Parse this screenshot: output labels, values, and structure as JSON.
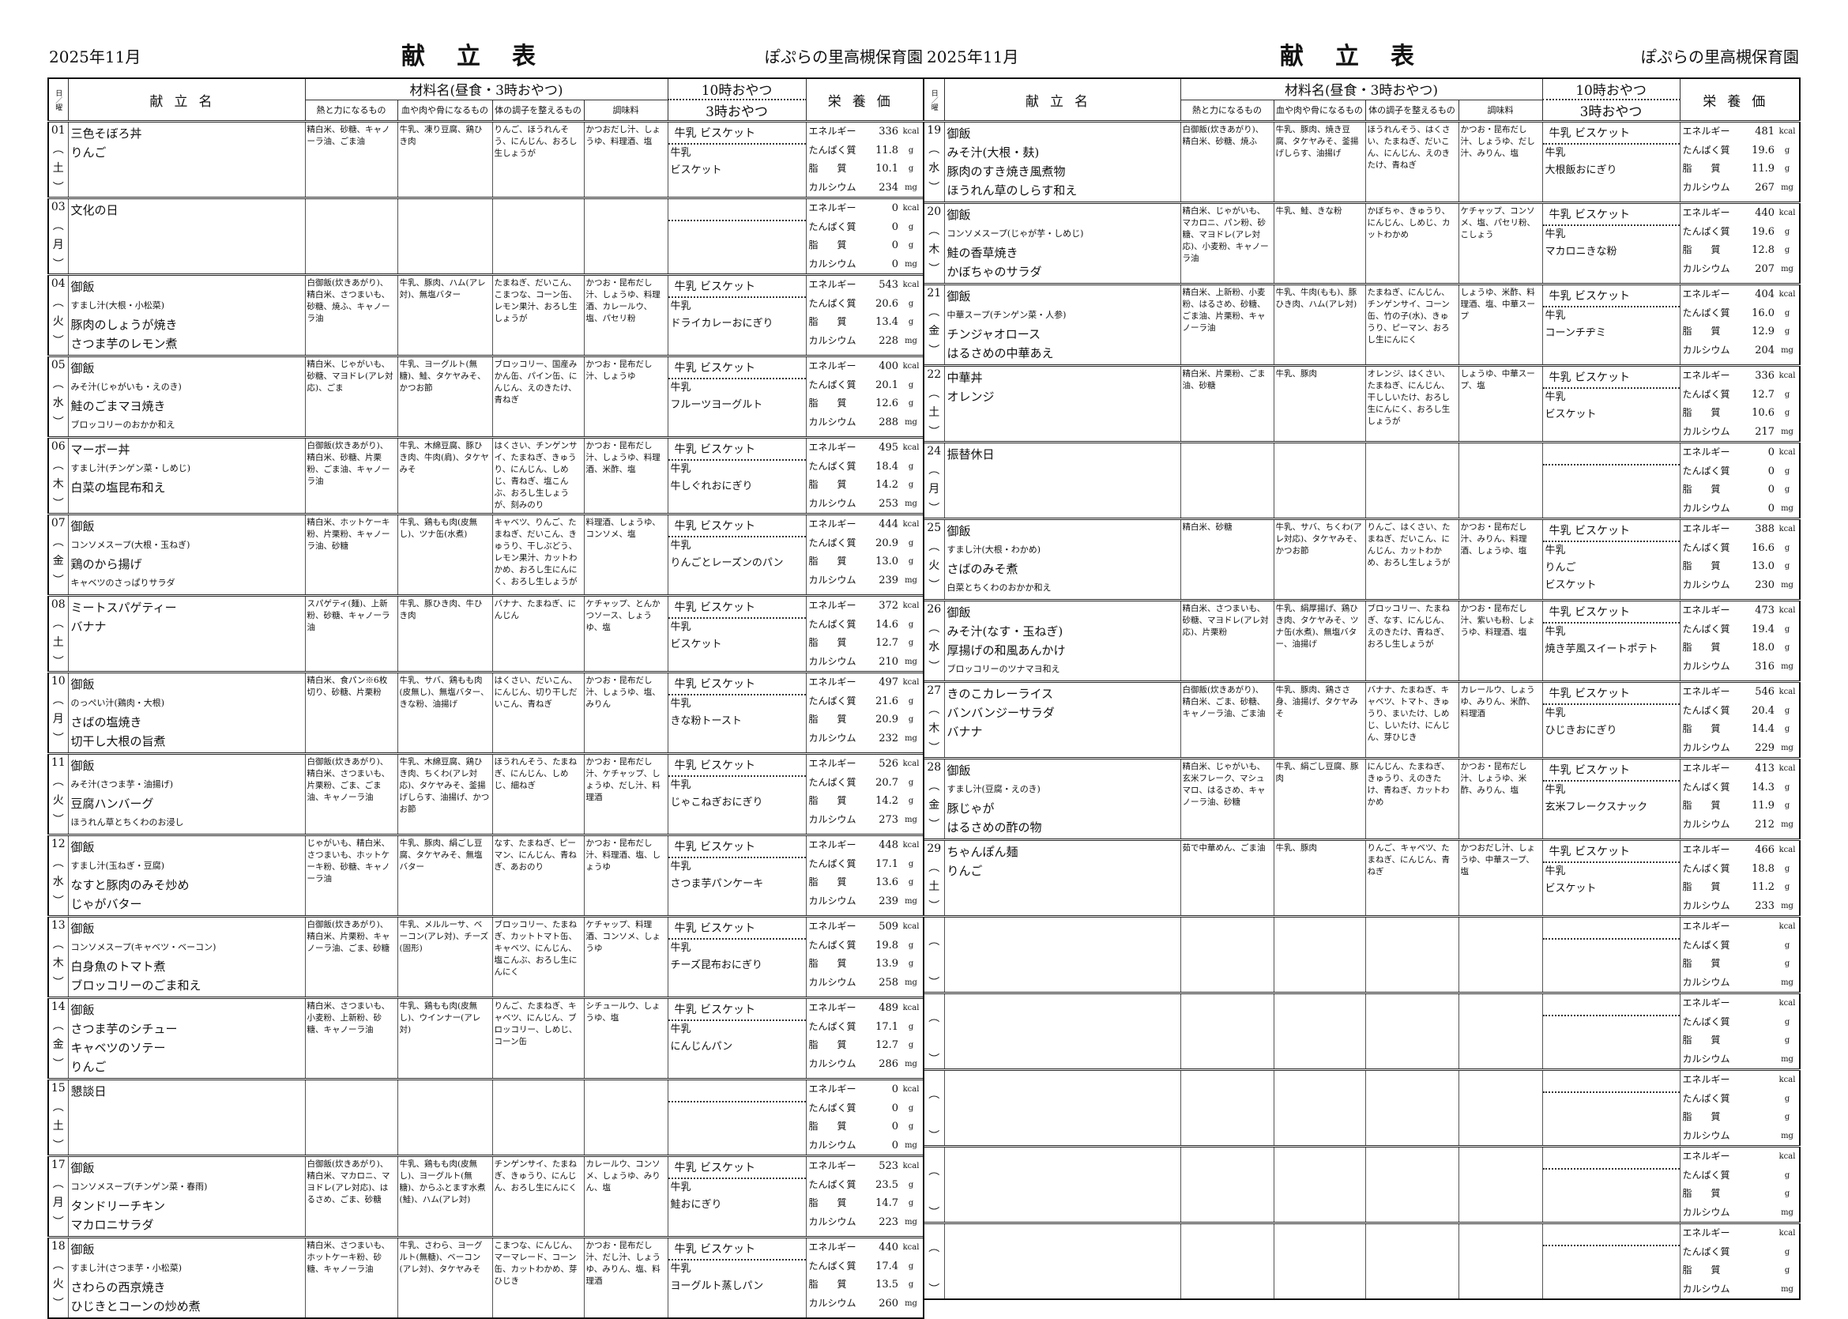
{
  "page": {
    "date": "2025年11月",
    "title": "献立表",
    "org": "ぽぷらの里高槻保育園"
  },
  "header": {
    "day": "日／曜",
    "menu": "献立名",
    "ingredients": "材料名(昼食・3時おやつ)",
    "energy_food": "熱と力になるもの",
    "body_food": "血や肉や骨になるもの",
    "condition_food": "体の調子を整えるもの",
    "seasoning": "調味料",
    "snack_am": "10時おやつ",
    "snack_pm": "3時おやつ",
    "nutrition": "栄養価"
  },
  "paren_open": "︵",
  "paren_close": "︶",
  "nutrition_labels": [
    "エネルギー",
    "たんぱく質",
    "脂　　質",
    "カルシウム"
  ],
  "nutrition_units": [
    "kcal",
    "g",
    "g",
    "mg"
  ],
  "left_rows": [
    {
      "day": "01",
      "wd": "土",
      "menu": [
        "三色そぼろ丼",
        "りんご"
      ],
      "heat": "精白米、砂糖、キャノーラ油、ごま油",
      "blood": "牛乳、凍り豆腐、鶏ひき肉",
      "body": "りんご、ほうれんそう、にんじん、おろし生しょうが",
      "season": "かつおだし汁、しょうゆ、料理酒、塩",
      "am": "牛乳 ビスケット",
      "pm": [
        "牛乳",
        "ビスケット"
      ],
      "nut": [
        "336",
        "11.8",
        "10.1",
        "234"
      ]
    },
    {
      "day": "03",
      "wd": "月",
      "menu": [
        "文化の日"
      ],
      "heat": "",
      "blood": "",
      "body": "",
      "season": "",
      "am": "",
      "pm": [],
      "nut": [
        "0",
        "0",
        "0",
        "0"
      ]
    },
    {
      "day": "04",
      "wd": "火",
      "menu": [
        "御飯",
        "すまし汁(大根・小松菜)",
        "豚肉のしょうが焼き",
        "さつま芋のレモン煮"
      ],
      "heat": "白御飯(炊きあがり)、精白米、さつまいも、砂糖、焼ふ、キャノーラ油",
      "blood": "牛乳、豚肉、ハム(アレ対)、無塩バター",
      "body": "たまねぎ、だいこん、こまつな、コーン缶、レモン果汁、おろし生しょうが",
      "season": "かつお・昆布だし汁、しょうゆ、料理酒、カレールウ、塩、パセリ粉",
      "am": "牛乳 ビスケット",
      "pm": [
        "牛乳",
        "ドライカレーおにぎり"
      ],
      "nut": [
        "543",
        "20.6",
        "13.4",
        "228"
      ]
    },
    {
      "day": "05",
      "wd": "水",
      "menu": [
        "御飯",
        "みそ汁(じゃがいも・えのき)",
        "鮭のごまマヨ焼き",
        "ブロッコリーのおかか和え"
      ],
      "heat": "精白米、じゃがいも、砂糖、マヨドレ(アレ対応)、ごま",
      "blood": "牛乳、ヨーグルト(無糖)、鮭、タケヤみそ、かつお節",
      "body": "ブロッコリー、国産みかん缶、パイン缶、にんじん、えのきたけ、青ねぎ",
      "season": "かつお・昆布だし汁、しょうゆ",
      "am": "牛乳 ビスケット",
      "pm": [
        "牛乳",
        "フルーツヨーグルト"
      ],
      "nut": [
        "400",
        "20.1",
        "12.6",
        "288"
      ]
    },
    {
      "day": "06",
      "wd": "木",
      "menu": [
        "マーボー丼",
        "すまし汁(チンゲン菜・しめじ)",
        "白菜の塩昆布和え"
      ],
      "heat": "白御飯(炊きあがり)、精白米、砂糖、片栗粉、ごま油、キャノーラ油",
      "blood": "牛乳、木綿豆腐、豚ひき肉、牛肉(肩)、タケヤみそ",
      "body": "はくさい、チンゲンサイ、たまねぎ、きゅうり、にんじん、しめじ、青ねぎ、塩こんぶ、おろし生しょうが、刻みのり",
      "season": "かつお・昆布だし汁、しょうゆ、料理酒、米酢、塩",
      "am": "牛乳 ビスケット",
      "pm": [
        "牛乳",
        "牛しぐれおにぎり"
      ],
      "nut": [
        "495",
        "18.4",
        "14.2",
        "253"
      ]
    },
    {
      "day": "07",
      "wd": "金",
      "menu": [
        "御飯",
        "コンソメスープ(大根・玉ねぎ)",
        "鶏のから揚げ",
        "キャベツのさっぱりサラダ"
      ],
      "heat": "精白米、ホットケーキ粉、片栗粉、キャノーラ油、砂糖",
      "blood": "牛乳、鶏もも肉(皮無し)、ツナ缶(水煮)",
      "body": "キャベツ、りんご、たまねぎ、だいこん、きゅうり、干しぶどう、レモン果汁、カットわかめ、おろし生にんにく、おろし生しょうが",
      "season": "料理酒、しょうゆ、コンソメ、塩",
      "am": "牛乳 ビスケット",
      "pm": [
        "牛乳",
        "りんごとレーズンのパン"
      ],
      "nut": [
        "444",
        "20.9",
        "13.0",
        "239"
      ]
    },
    {
      "day": "08",
      "wd": "土",
      "menu": [
        "ミートスパゲティー",
        "バナナ"
      ],
      "heat": "スパゲティ(麺)、上新粉、砂糖、キャノーラ油",
      "blood": "牛乳、豚ひき肉、牛ひき肉",
      "body": "バナナ、たまねぎ、にんじん",
      "season": "ケチャップ、とんかつソース、しょうゆ、塩",
      "am": "牛乳 ビスケット",
      "pm": [
        "牛乳",
        "ビスケット"
      ],
      "nut": [
        "372",
        "14.6",
        "12.7",
        "210"
      ]
    },
    {
      "day": "10",
      "wd": "月",
      "menu": [
        "御飯",
        "のっぺい汁(鶏肉・大根)",
        "さばの塩焼き",
        "切干し大根の旨煮"
      ],
      "heat": "精白米、食パン※6枚切り、砂糖、片栗粉",
      "blood": "牛乳、サバ、鶏もも肉(皮無し)、無塩バター、きな粉、油揚げ",
      "body": "はくさい、だいこん、にんじん、切り干しだいこん、青ねぎ",
      "season": "かつお・昆布だし汁、しょうゆ、塩、みりん",
      "am": "牛乳 ビスケット",
      "pm": [
        "牛乳",
        "きな粉トースト"
      ],
      "nut": [
        "497",
        "21.6",
        "20.9",
        "232"
      ]
    },
    {
      "day": "11",
      "wd": "火",
      "menu": [
        "御飯",
        "みそ汁(さつま芋・油揚げ)",
        "豆腐ハンバーグ",
        "ほうれん草とちくわのお浸し"
      ],
      "heat": "白御飯(炊きあがり)、精白米、さつまいも、片栗粉、ごま、ごま油、キャノーラ油",
      "blood": "牛乳、木綿豆腐、鶏ひき肉、ちくわ(アレ対応)、タケヤみそ、釜揚げしらす、油揚げ、かつお節",
      "body": "ほうれんそう、たまねぎ、にんじん、しめじ、細ねぎ",
      "season": "かつお・昆布だし汁、ケチャップ、しょうゆ、だし汁、料理酒",
      "am": "牛乳 ビスケット",
      "pm": [
        "牛乳",
        "じゃこねぎおにぎり"
      ],
      "nut": [
        "526",
        "20.7",
        "14.2",
        "273"
      ]
    },
    {
      "day": "12",
      "wd": "水",
      "menu": [
        "御飯",
        "すまし汁(玉ねぎ・豆腐)",
        "なすと豚肉のみそ炒め",
        "じゃがバター"
      ],
      "heat": "じゃがいも、精白米、さつまいも、ホットケーキ粉、砂糖、キャノーラ油",
      "blood": "牛乳、豚肉、絹ごし豆腐、タケヤみそ、無塩バター",
      "body": "なす、たまねぎ、ピーマン、にんじん、青ねぎ、あおのり",
      "season": "かつお・昆布だし汁、料理酒、塩、しょうゆ",
      "am": "牛乳 ビスケット",
      "pm": [
        "牛乳",
        "さつま芋パンケーキ"
      ],
      "nut": [
        "448",
        "17.1",
        "13.6",
        "239"
      ]
    },
    {
      "day": "13",
      "wd": "木",
      "menu": [
        "御飯",
        "コンソメスープ(キャベツ・ベーコン)",
        "白身魚のトマト煮",
        "ブロッコリーのごま和え"
      ],
      "heat": "白御飯(炊きあがり)、精白米、片栗粉、キャノーラ油、ごま、砂糖",
      "blood": "牛乳、メルルーサ、ベーコン(アレ対)、チーズ(固形)",
      "body": "ブロッコリー、たまねぎ、カットトマト缶、キャベツ、にんじん、塩こんぶ、おろし生にんにく",
      "season": "ケチャップ、料理酒、コンソメ、しょうゆ",
      "am": "牛乳 ビスケット",
      "pm": [
        "牛乳",
        "チーズ昆布おにぎり"
      ],
      "nut": [
        "509",
        "19.8",
        "13.9",
        "258"
      ]
    },
    {
      "day": "14",
      "wd": "金",
      "menu": [
        "御飯",
        "さつま芋のシチュー",
        "キャベツのソテー",
        "りんご"
      ],
      "heat": "精白米、さつまいも、小麦粉、上新粉、砂糖、キャノーラ油",
      "blood": "牛乳、鶏もも肉(皮無し)、ウインナー(アレ対)",
      "body": "りんご、たまねぎ、キャベツ、にんじん、ブロッコリー、しめじ、コーン缶",
      "season": "シチュールウ、しょうゆ、塩",
      "am": "牛乳 ビスケット",
      "pm": [
        "牛乳",
        "にんじんパン"
      ],
      "nut": [
        "489",
        "17.1",
        "12.7",
        "286"
      ]
    },
    {
      "day": "15",
      "wd": "土",
      "menu": [
        "懇談日"
      ],
      "heat": "",
      "blood": "",
      "body": "",
      "season": "",
      "am": "",
      "pm": [],
      "nut": [
        "0",
        "0",
        "0",
        "0"
      ]
    },
    {
      "day": "17",
      "wd": "月",
      "menu": [
        "御飯",
        "コンソメスープ(チンゲン菜・春雨)",
        "タンドリーチキン",
        "マカロニサラダ"
      ],
      "heat": "白御飯(炊きあがり)、精白米、マカロニ、マヨドレ(アレ対応)、はるさめ、ごま、砂糖",
      "blood": "牛乳、鶏もも肉(皮無し)、ヨーグルト(無糖)、からふとます水煮(鮭)、ハム(アレ対)",
      "body": "チンゲンサイ、たまねぎ、きゅうり、にんじん、おろし生にんにく",
      "season": "カレールウ、コンソメ、しょうゆ、みりん、塩",
      "am": "牛乳 ビスケット",
      "pm": [
        "牛乳",
        "鮭おにぎり"
      ],
      "nut": [
        "523",
        "23.5",
        "14.7",
        "223"
      ]
    },
    {
      "day": "18",
      "wd": "火",
      "menu": [
        "御飯",
        "すまし汁(さつま芋・小松菜)",
        "さわらの西京焼き",
        "ひじきとコーンの炒め煮"
      ],
      "heat": "精白米、さつまいも、ホットケーキ粉、砂糖、キャノーラ油",
      "blood": "牛乳、さわら、ヨーグルト(無糖)、ベーコン(アレ対)、タケヤみそ",
      "body": "こまつな、にんじん、マーマレード、コーン缶、カットわかめ、芽ひじき",
      "season": "かつお・昆布だし汁、だし汁、しょうゆ、みりん、塩、料理酒",
      "am": "牛乳 ビスケット",
      "pm": [
        "牛乳",
        "ヨーグルト蒸しパン"
      ],
      "nut": [
        "440",
        "17.4",
        "13.5",
        "260"
      ]
    }
  ],
  "right_rows": [
    {
      "day": "19",
      "wd": "水",
      "menu": [
        "御飯",
        "みそ汁(大根・麸)",
        "豚肉のすき焼き風煮物",
        "ほうれん草のしらす和え"
      ],
      "heat": "白御飯(炊きあがり)、精白米、砂糖、焼ふ",
      "blood": "牛乳、豚肉、焼き豆腐、タケヤみそ、釜揚げしらす、油揚げ",
      "body": "ほうれんそう、はくさい、たまねぎ、だいこん、にんじん、えのきたけ、青ねぎ",
      "season": "かつお・昆布だし汁、しょうゆ、だし汁、みりん、塩",
      "am": "牛乳 ビスケット",
      "pm": [
        "牛乳",
        "大根飯おにぎり"
      ],
      "nut": [
        "481",
        "19.6",
        "11.9",
        "267"
      ]
    },
    {
      "day": "20",
      "wd": "木",
      "menu": [
        "御飯",
        "コンソメスープ(じゃが芋・しめじ)",
        "鮭の香草焼き",
        "かぼちゃのサラダ"
      ],
      "heat": "精白米、じゃがいも、マカロニ、パン粉、砂糖、マヨドレ(アレ対応)、小麦粉、キャノーラ油",
      "blood": "牛乳、鮭、きな粉",
      "body": "かぼちゃ、きゅうり、にんじん、しめじ、カットわかめ",
      "season": "ケチャップ、コンソメ、塩、パセリ粉、こしょう",
      "am": "牛乳 ビスケット",
      "pm": [
        "牛乳",
        "マカロニきな粉"
      ],
      "nut": [
        "440",
        "19.6",
        "12.8",
        "207"
      ]
    },
    {
      "day": "21",
      "wd": "金",
      "menu": [
        "御飯",
        "中華スープ(チンゲン菜・人参)",
        "チンジャオロース",
        "はるさめの中華あえ"
      ],
      "heat": "精白米、上新粉、小麦粉、はるさめ、砂糖、ごま油、片栗粉、キャノーラ油",
      "blood": "牛乳、牛肉(もも)、豚ひき肉、ハム(アレ対)",
      "body": "たまねぎ、にんじん、チンゲンサイ、コーン缶、竹の子(水)、きゅうり、ピーマン、おろし生にんにく",
      "season": "しょうゆ、米酢、料理酒、塩、中華スープ",
      "am": "牛乳 ビスケット",
      "pm": [
        "牛乳",
        "コーンチヂミ"
      ],
      "nut": [
        "404",
        "16.0",
        "12.9",
        "204"
      ]
    },
    {
      "day": "22",
      "wd": "土",
      "menu": [
        "中華丼",
        "オレンジ"
      ],
      "heat": "精白米、片栗粉、ごま油、砂糖",
      "blood": "牛乳、豚肉",
      "body": "オレンジ、はくさい、たまねぎ、にんじん、干ししいたけ、おろし生にんにく、おろし生しょうが",
      "season": "しょうゆ、中華スープ、塩",
      "am": "牛乳 ビスケット",
      "pm": [
        "牛乳",
        "ビスケット"
      ],
      "nut": [
        "336",
        "12.7",
        "10.6",
        "217"
      ]
    },
    {
      "day": "24",
      "wd": "月",
      "menu": [
        "振替休日"
      ],
      "heat": "",
      "blood": "",
      "body": "",
      "season": "",
      "am": "",
      "pm": [],
      "nut": [
        "0",
        "0",
        "0",
        "0"
      ]
    },
    {
      "day": "25",
      "wd": "火",
      "menu": [
        "御飯",
        "すまし汁(大根・わかめ)",
        "さばのみそ煮",
        "白菜とちくわのおかか和え"
      ],
      "heat": "精白米、砂糖",
      "blood": "牛乳、サバ、ちくわ(アレ対応)、タケヤみそ、かつお節",
      "body": "りんご、はくさい、たまねぎ、だいこん、にんじん、カットわかめ、おろし生しょうが",
      "season": "かつお・昆布だし汁、みりん、料理酒、しょうゆ、塩",
      "am": "牛乳 ビスケット",
      "pm": [
        "牛乳",
        "りんご",
        "ビスケット"
      ],
      "nut": [
        "388",
        "16.6",
        "13.0",
        "230"
      ]
    },
    {
      "day": "26",
      "wd": "水",
      "menu": [
        "御飯",
        "みそ汁(なす・玉ねぎ)",
        "厚揚げの和風あんかけ",
        "ブロッコリーのツナマヨ和え"
      ],
      "heat": "精白米、さつまいも、砂糖、マヨドレ(アレ対応)、片栗粉",
      "blood": "牛乳、絹厚揚げ、鶏ひき肉、タケヤみそ、ツナ缶(水煮)、無塩バター、油揚げ",
      "body": "ブロッコリー、たまねぎ、なす、にんじん、えのきたけ、青ねぎ、おろし生しょうが",
      "season": "かつお・昆布だし汁、紫いも粉、しょうゆ、料理酒、塩",
      "am": "牛乳 ビスケット",
      "pm": [
        "牛乳",
        "焼き芋風スイートポテト"
      ],
      "nut": [
        "473",
        "19.4",
        "18.0",
        "316"
      ]
    },
    {
      "day": "27",
      "wd": "木",
      "menu": [
        "きのこカレーライス",
        "バンバンジーサラダ",
        "バナナ"
      ],
      "heat": "白御飯(炊きあがり)、精白米、ごま、砂糖、キャノーラ油、ごま油",
      "blood": "牛乳、豚肉、鶏ささ身、油揚げ、タケヤみそ",
      "body": "バナナ、たまねぎ、キャベツ、トマト、きゅうり、まいたけ、しめじ、しいたけ、にんじん、芽ひじき",
      "season": "カレールウ、しょうゆ、みりん、米酢、料理酒",
      "am": "牛乳 ビスケット",
      "pm": [
        "牛乳",
        "ひじきおにぎり"
      ],
      "nut": [
        "546",
        "20.4",
        "14.4",
        "229"
      ]
    },
    {
      "day": "28",
      "wd": "金",
      "menu": [
        "御飯",
        "すまし汁(豆腐・えのき)",
        "豚じゃが",
        "はるさめの酢の物"
      ],
      "heat": "精白米、じゃがいも、玄米フレーク、マシュマロ、はるさめ、キャノーラ油、砂糖",
      "blood": "牛乳、絹ごし豆腐、豚肉",
      "body": "にんじん、たまねぎ、きゅうり、えのきたけ、青ねぎ、カットわかめ",
      "season": "かつお・昆布だし汁、しょうゆ、米酢、みりん、塩",
      "am": "牛乳 ビスケット",
      "pm": [
        "牛乳",
        "玄米フレークスナック"
      ],
      "nut": [
        "413",
        "14.3",
        "11.9",
        "212"
      ]
    },
    {
      "day": "29",
      "wd": "土",
      "menu": [
        "ちゃんぽん麺",
        "りんご"
      ],
      "heat": "茹で中華めん、ごま油",
      "blood": "牛乳、豚肉",
      "body": "りんご、キャベツ、たまねぎ、にんじん、青ねぎ",
      "season": "かつおだし汁、しょうゆ、中華スープ、塩",
      "am": "牛乳 ビスケット",
      "pm": [
        "牛乳",
        "ビスケット"
      ],
      "nut": [
        "466",
        "18.8",
        "11.2",
        "233"
      ]
    },
    {
      "day": "",
      "wd": "",
      "menu": [],
      "heat": "",
      "blood": "",
      "body": "",
      "season": "",
      "am": "",
      "pm": [],
      "nut": [
        "",
        "",
        "",
        ""
      ]
    },
    {
      "day": "",
      "wd": "",
      "menu": [],
      "heat": "",
      "blood": "",
      "body": "",
      "season": "",
      "am": "",
      "pm": [],
      "nut": [
        "",
        "",
        "",
        ""
      ]
    },
    {
      "day": "",
      "wd": "",
      "menu": [],
      "heat": "",
      "blood": "",
      "body": "",
      "season": "",
      "am": "",
      "pm": [],
      "nut": [
        "",
        "",
        "",
        ""
      ]
    },
    {
      "day": "",
      "wd": "",
      "menu": [],
      "heat": "",
      "blood": "",
      "body": "",
      "season": "",
      "am": "",
      "pm": [],
      "nut": [
        "",
        "",
        "",
        ""
      ]
    },
    {
      "day": "",
      "wd": "",
      "menu": [],
      "heat": "",
      "blood": "",
      "body": "",
      "season": "",
      "am": "",
      "pm": [],
      "nut": [
        "",
        "",
        "",
        ""
      ]
    }
  ]
}
